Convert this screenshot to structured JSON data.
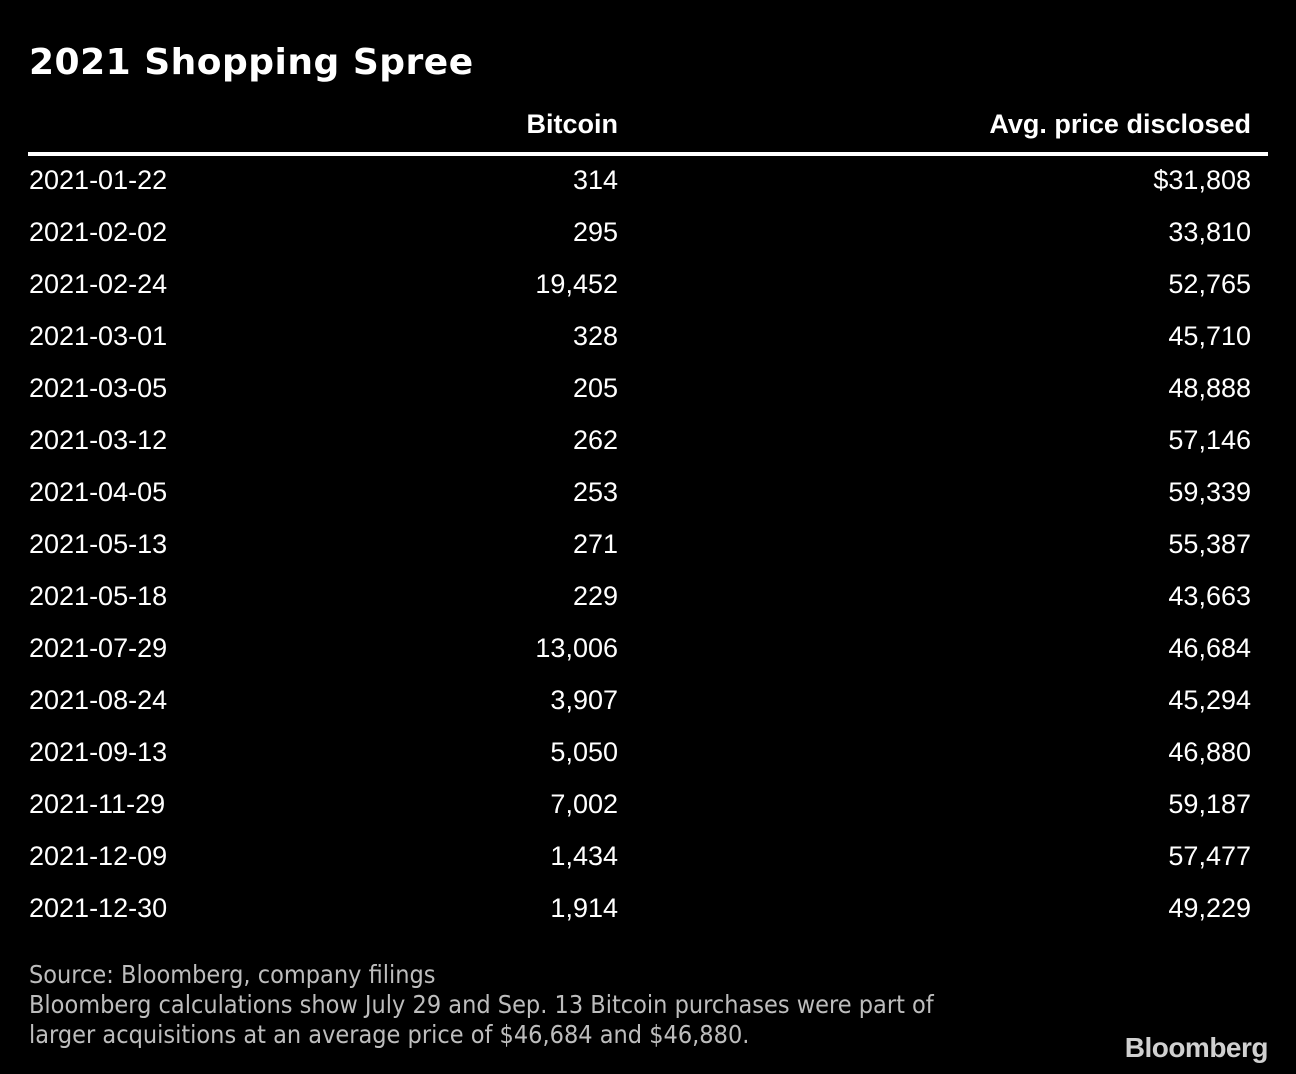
{
  "chart_data": {
    "type": "table",
    "title": "2021 Shopping Spree",
    "columns": [
      "",
      "Bitcoin",
      "Avg. price disclosed"
    ],
    "rows": [
      {
        "date": "2021-01-22",
        "bitcoin": "314",
        "avg_price": "$31,808"
      },
      {
        "date": "2021-02-02",
        "bitcoin": "295",
        "avg_price": "33,810"
      },
      {
        "date": "2021-02-24",
        "bitcoin": "19,452",
        "avg_price": "52,765"
      },
      {
        "date": "2021-03-01",
        "bitcoin": "328",
        "avg_price": "45,710"
      },
      {
        "date": "2021-03-05",
        "bitcoin": "205",
        "avg_price": "48,888"
      },
      {
        "date": "2021-03-12",
        "bitcoin": "262",
        "avg_price": "57,146"
      },
      {
        "date": "2021-04-05",
        "bitcoin": "253",
        "avg_price": "59,339"
      },
      {
        "date": "2021-05-13",
        "bitcoin": "271",
        "avg_price": "55,387"
      },
      {
        "date": "2021-05-18",
        "bitcoin": "229",
        "avg_price": "43,663"
      },
      {
        "date": "2021-07-29",
        "bitcoin": "13,006",
        "avg_price": "46,684"
      },
      {
        "date": "2021-08-24",
        "bitcoin": "3,907",
        "avg_price": "45,294"
      },
      {
        "date": "2021-09-13",
        "bitcoin": "5,050",
        "avg_price": "46,880"
      },
      {
        "date": "2021-11-29",
        "bitcoin": "7,002",
        "avg_price": "59,187"
      },
      {
        "date": "2021-12-09",
        "bitcoin": "1,434",
        "avg_price": "57,477"
      },
      {
        "date": "2021-12-30",
        "bitcoin": "1,914",
        "avg_price": "49,229"
      }
    ],
    "source": "Source: Bloomberg, company filings",
    "note_lines": [
      "Bloomberg calculations show July 29 and Sep. 13 Bitcoin purchases were part of",
      "larger acquisitions at an average price of $46,684 and $46,880."
    ]
  },
  "branding": {
    "logo_text": "Bloomberg"
  },
  "colors": {
    "background": "#000000",
    "text": "#ffffff",
    "notes": "#bdbdbd"
  }
}
